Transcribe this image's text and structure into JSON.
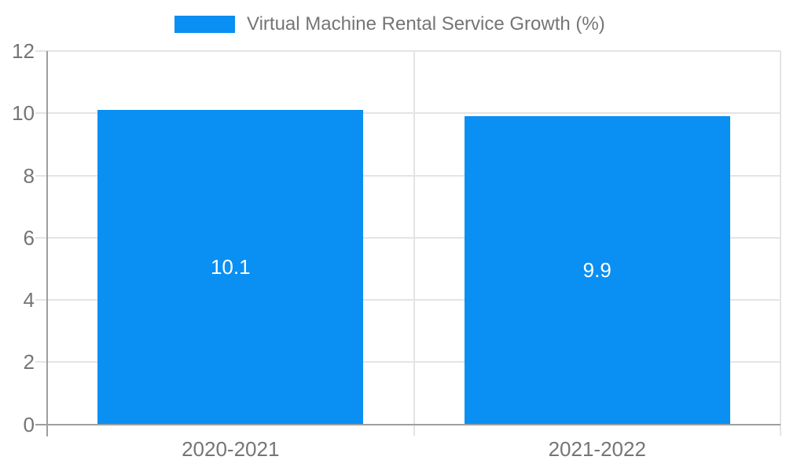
{
  "chart_data": {
    "type": "bar",
    "title": "Virtual Machine Rental Service Growth (%)",
    "categories": [
      "2020-2021",
      "2021-2022"
    ],
    "values": [
      10.1,
      9.9
    ],
    "value_labels": [
      "10.1",
      "9.9"
    ],
    "xlabel": "",
    "ylabel": "",
    "ylim": [
      0,
      12
    ],
    "yticks": [
      0,
      2,
      4,
      6,
      8,
      10,
      12
    ],
    "grid": true,
    "legend_position": "top"
  },
  "colors": {
    "bar": "#0a8ff2",
    "bar_label_text": "#ffffff",
    "axis_line": "#9e9e9e",
    "gridline": "#e4e4e4",
    "label_text": "#757575",
    "background": "#ffffff"
  }
}
